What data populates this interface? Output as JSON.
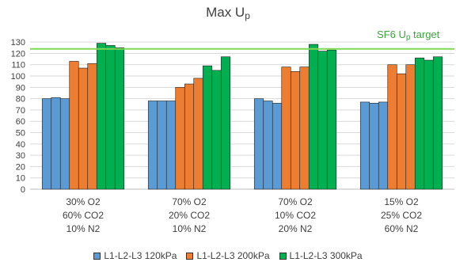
{
  "chart_data": {
    "type": "bar",
    "title_main": "Max U",
    "title_sub": "p",
    "yticks": [
      0,
      10,
      20,
      30,
      40,
      50,
      60,
      70,
      80,
      90,
      100,
      110,
      120,
      130
    ],
    "ylim": [
      0,
      135
    ],
    "grid": true,
    "legend_position": "bottom",
    "categories": [
      [
        "30% O2",
        "60% CO2",
        "10% N2"
      ],
      [
        "70% O2",
        "20% CO2",
        "10% N2"
      ],
      [
        "70% O2",
        "10% CO2",
        "20% N2"
      ],
      [
        "15% O2",
        "25% CO2",
        "60% N2"
      ]
    ],
    "series": [
      {
        "name": "L1-L2-L3 120kPa",
        "color": "#5b9bd5",
        "values": [
          [
            80,
            81,
            80
          ],
          [
            78,
            78,
            78
          ],
          [
            80,
            78,
            76
          ],
          [
            77,
            76,
            77
          ]
        ]
      },
      {
        "name": "L1-L2-L3 200kPa",
        "color": "#ed7d31",
        "values": [
          [
            113,
            107,
            111
          ],
          [
            90,
            93,
            98
          ],
          [
            108,
            104,
            108
          ],
          [
            110,
            102,
            110
          ]
        ]
      },
      {
        "name": "L1-L2-L3 300kPa",
        "color": "#00b050",
        "values": [
          [
            129,
            127,
            125
          ],
          [
            109,
            105,
            117
          ],
          [
            128,
            122,
            123
          ],
          [
            116,
            114,
            117
          ]
        ]
      }
    ],
    "target_line": {
      "value": 124,
      "label_main": "SF6 U",
      "label_sub": "p",
      "label_suffix": " target",
      "color": "#7ed957"
    }
  }
}
